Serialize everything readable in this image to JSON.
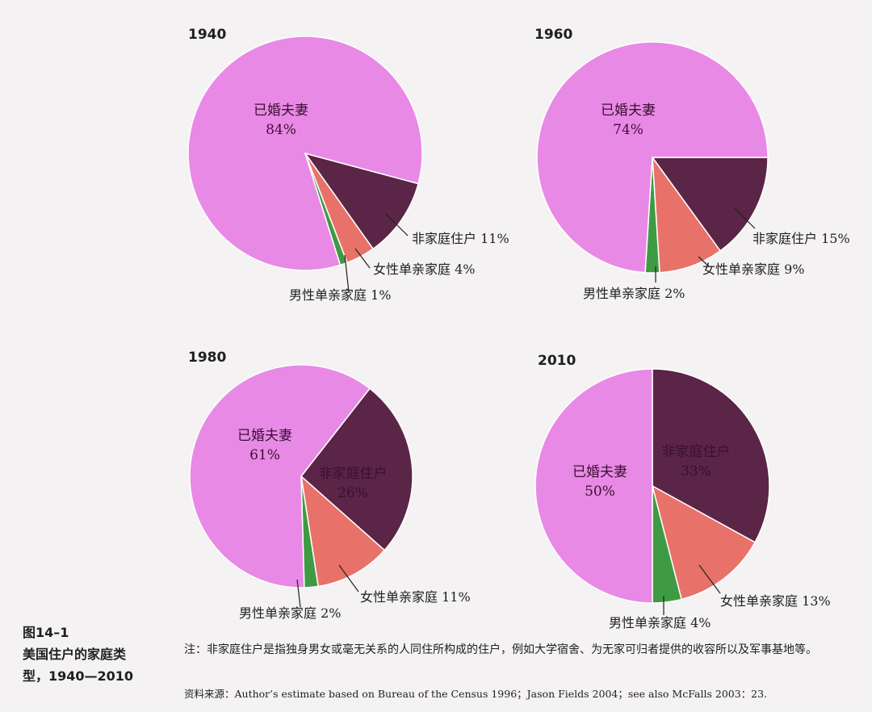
{
  "chart_data": [
    {
      "type": "pie",
      "title": "1940",
      "slices": [
        {
          "name": "已婚夫妻",
          "value": 84,
          "value_label": "84%",
          "color": "#e989e6"
        },
        {
          "name": "非家庭住户",
          "value": 11,
          "value_label": "11%",
          "color": "#5a2546"
        },
        {
          "name": "女性单亲家庭",
          "value": 4,
          "value_label": "4%",
          "color": "#e8726a"
        },
        {
          "name": "男性单亲家庭",
          "value": 1,
          "value_label": "1%",
          "color": "#3f9a44"
        }
      ]
    },
    {
      "type": "pie",
      "title": "1960",
      "slices": [
        {
          "name": "已婚夫妻",
          "value": 74,
          "value_label": "74%",
          "color": "#e989e6"
        },
        {
          "name": "非家庭住户",
          "value": 15,
          "value_label": "15%",
          "color": "#5a2546"
        },
        {
          "name": "女性单亲家庭",
          "value": 9,
          "value_label": "9%",
          "color": "#e8726a"
        },
        {
          "name": "男性单亲家庭",
          "value": 2,
          "value_label": "2%",
          "color": "#3f9a44"
        }
      ]
    },
    {
      "type": "pie",
      "title": "1980",
      "slices": [
        {
          "name": "已婚夫妻",
          "value": 61,
          "value_label": "61%",
          "color": "#e989e6"
        },
        {
          "name": "非家庭住户",
          "value": 26,
          "value_label": "26%",
          "color": "#5a2546"
        },
        {
          "name": "女性单亲家庭",
          "value": 11,
          "value_label": "11%",
          "color": "#e8726a"
        },
        {
          "name": "男性单亲家庭",
          "value": 2,
          "value_label": "2%",
          "color": "#3f9a44"
        }
      ]
    },
    {
      "type": "pie",
      "title": "2010",
      "slices": [
        {
          "name": "已婚夫妻",
          "value": 50,
          "value_label": "50%",
          "color": "#e989e6"
        },
        {
          "name": "非家庭住户",
          "value": 33,
          "value_label": "33%",
          "color": "#5a2546"
        },
        {
          "name": "女性单亲家庭",
          "value": 13,
          "value_label": "13%",
          "color": "#e8726a"
        },
        {
          "name": "男性单亲家庭",
          "value": 4,
          "value_label": "4%",
          "color": "#3f9a44"
        }
      ]
    }
  ],
  "figure": {
    "caption_lines": [
      "图14–1",
      "美国住户的家庭类",
      "型，1940—2010"
    ],
    "note": "注：非家庭住户是指独身男女或毫无关系的人同住所构成的住户，例如大学宿舍、为无家可归者提供的收容所以及军事基地等。",
    "source": "资料来源：Author’s estimate based on Bureau of the Census 1996；Jason Fields 2004；see also McFalls 2003：23."
  }
}
